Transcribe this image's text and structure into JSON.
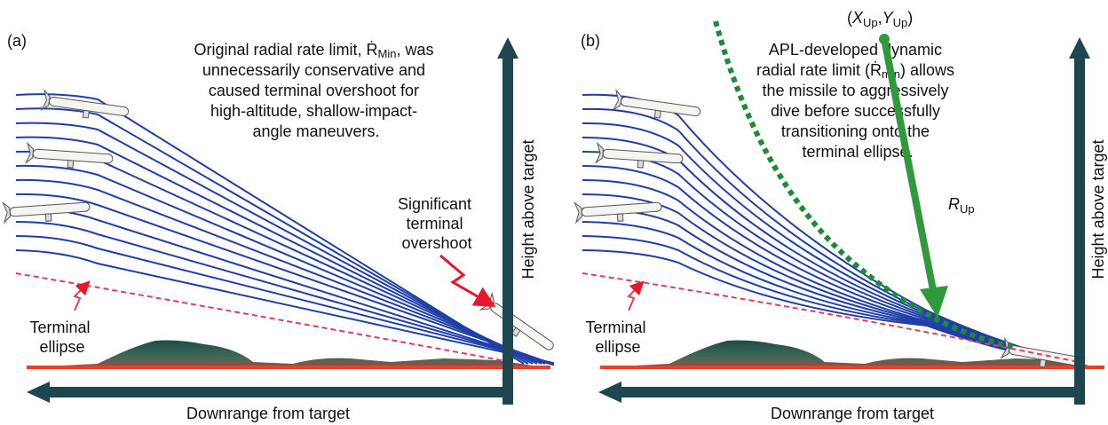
{
  "panel_a": {
    "label": "(a)",
    "caption_lines": [
      "Original radial rate limit, Ṙ",
      "unnecessarily conservative and",
      "caused terminal overshoot for",
      "high-altitude, shallow-impact-",
      "angle maneuvers."
    ],
    "caption_sub": "Min",
    "caption_tail": ", was",
    "callout_lines": [
      "Significant",
      "terminal",
      "overshoot"
    ],
    "ellipse_label_lines": [
      "Terminal",
      "ellipse"
    ],
    "x_axis_label": "Downrange from target",
    "y_axis_label": "Height above target"
  },
  "panel_b": {
    "label": "(b)",
    "caption_lines": [
      "APL-developed dynamic",
      "radial rate limit (Ṙ",
      "the missile to aggressively",
      "dive before successfully",
      "transitioning onto the",
      "terminal ellipse."
    ],
    "caption_sub": "min",
    "caption_tail": ") allows",
    "point_label": {
      "x": "X",
      "x_sub": "Up",
      "y": "Y",
      "y_sub": "Up"
    },
    "range_label": {
      "main": "R",
      "sub": "Up"
    },
    "ellipse_label_lines": [
      "Terminal",
      "ellipse"
    ],
    "x_axis_label": "Downrange from target",
    "y_axis_label": "Height above target"
  },
  "colors": {
    "trajectory": "#1f3fa6",
    "axis": "#1e4650",
    "terrain_top": "#1f4c4c",
    "terrain_bottom": "#b0463c",
    "ground": "#e8402a",
    "ellipse": "#e23c64",
    "callout": "#e8182a",
    "range_vector": "#2f9a3a",
    "dynamic_limit": "#1f8a3a"
  }
}
